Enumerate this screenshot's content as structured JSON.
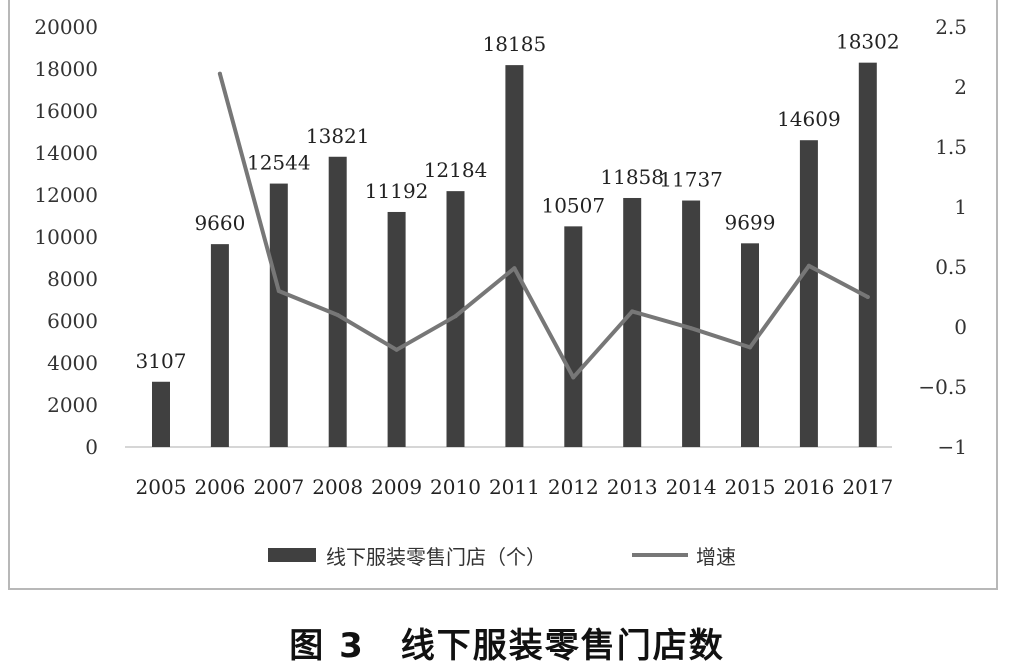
{
  "chart_data": {
    "type": "bar",
    "categories": [
      "2005",
      "2006",
      "2007",
      "2008",
      "2009",
      "2010",
      "2011",
      "2012",
      "2013",
      "2014",
      "2015",
      "2016",
      "2017"
    ],
    "series": [
      {
        "name": "线下服装零售门店（个）",
        "type": "bar",
        "axis": "left",
        "values": [
          3107,
          9660,
          12544,
          13821,
          11192,
          12184,
          18185,
          10507,
          11858,
          11737,
          9699,
          14609,
          18302
        ],
        "color": "#404040"
      },
      {
        "name": "增速",
        "type": "line",
        "axis": "right",
        "values": [
          null,
          2.11,
          0.3,
          0.1,
          -0.19,
          0.09,
          0.49,
          -0.42,
          0.13,
          -0.01,
          -0.17,
          0.51,
          0.25
        ],
        "color": "#777777"
      }
    ],
    "data_labels": [
      "3107",
      "9660",
      "12544",
      "13821",
      "11192",
      "12184",
      "18185",
      "10507",
      "11858",
      "11737",
      "9699",
      "14609",
      "18302"
    ],
    "y_left": {
      "min": 0,
      "max": 20000,
      "ticks": [
        "0",
        "2000",
        "4000",
        "6000",
        "8000",
        "10000",
        "12000",
        "14000",
        "16000",
        "18000",
        "20000"
      ]
    },
    "y_right": {
      "min": -1,
      "max": 2.5,
      "ticks": [
        "-1",
        "-0.5",
        "0",
        "0.5",
        "1",
        "1.5",
        "2",
        "2.5"
      ]
    },
    "legend_position": "bottom",
    "grid": false
  },
  "caption": "图 3　线下服装零售门店数"
}
